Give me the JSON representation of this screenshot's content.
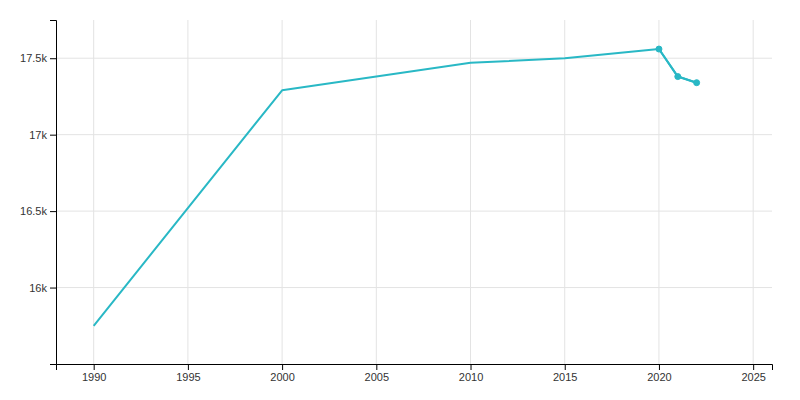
{
  "chart_data": {
    "type": "line",
    "x": [
      1990,
      2000,
      2010,
      2015,
      2020,
      2021,
      2022
    ],
    "series": [
      {
        "color": "#29b8c5",
        "values": [
          15750,
          17290,
          17470,
          17500,
          17560,
          17380,
          17340
        ]
      },
      {
        "color": "#29b8c5",
        "marker": "circle",
        "values": [
          null,
          null,
          null,
          null,
          17560,
          17380,
          17340
        ]
      }
    ],
    "xlim": [
      1988,
      2026
    ],
    "ylim": [
      15500,
      17750
    ],
    "xticks": [
      1990,
      1995,
      2000,
      2005,
      2010,
      2015,
      2020,
      2025
    ],
    "yticks": [
      {
        "value": 16000,
        "label": "16k"
      },
      {
        "value": 16500,
        "label": "16.5k"
      },
      {
        "value": 17000,
        "label": "17k"
      },
      {
        "value": 17500,
        "label": "17.5k"
      }
    ],
    "grid": true
  }
}
